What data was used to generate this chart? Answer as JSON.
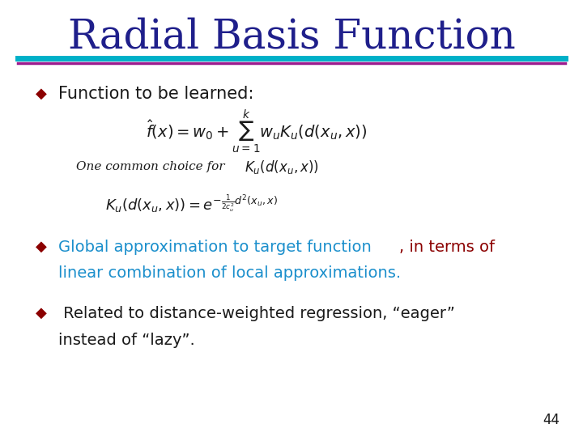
{
  "title": "Radial Basis Function",
  "title_color": "#1F1F8B",
  "title_fontsize": 36,
  "bg_color": "#FFFFFF",
  "line1_color": "#00B0C8",
  "line2_color": "#9B1B8E",
  "bullet_color": "#8B0000",
  "bullet_char": "◆",
  "bullet1_text": "Function to be learned:",
  "bullet1_color": "#1A1A1A",
  "formula1": "$\\hat{f}(x) = w_0 + \\sum_{u=1}^{k} w_u K_u(d(x_u, x))$",
  "formula1_color": "#1A1A1A",
  "subtext": "One common choice for",
  "subformula": "$K_u(d(x_u, x))$",
  "subtext_color": "#1A1A1A",
  "formula2": "$K_u(d(x_u, x)) = e^{-\\frac{1}{2c_u^2}d^2(x_u, x)}$",
  "formula2_color": "#1A1A1A",
  "bullet2_line1_part1": "Global approximation to target function",
  "bullet2_line1_part1_color": "#1B8FCC",
  "bullet2_line1_part2": ", in terms of",
  "bullet2_line1_part2_color": "#8B0000",
  "bullet2_line2": "linear combination of local approximations.",
  "bullet2_line2_color": "#1B8FCC",
  "bullet3_text1": " Related to distance-weighted regression, “eager”",
  "bullet3_text2": "instead of “lazy”.",
  "bullet3_color": "#1A1A1A",
  "page_num": "44",
  "page_num_color": "#1A1A1A"
}
